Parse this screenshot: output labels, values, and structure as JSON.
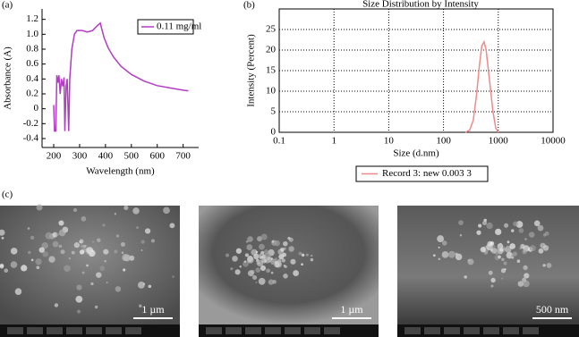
{
  "chart_data": [
    {
      "type": "line",
      "panel_label": "(a)",
      "x_label": "Wavelength (nm)",
      "y_label": "Absorbance (A)",
      "x": [
        200,
        203,
        208,
        212,
        216,
        220,
        225,
        230,
        235,
        240,
        243,
        248,
        252,
        258,
        262,
        270,
        280,
        290,
        310,
        330,
        350,
        370,
        380,
        385,
        395,
        410,
        430,
        460,
        500,
        550,
        600,
        650,
        700,
        720
      ],
      "series": [
        {
          "name": "0.11 mg/ml",
          "color": "#b23cc4",
          "values": [
            0.05,
            -0.3,
            -0.3,
            0.45,
            0.35,
            0.45,
            0.2,
            0.4,
            0.3,
            0.42,
            -0.3,
            0.3,
            0.4,
            -0.3,
            0.4,
            0.8,
            1.0,
            1.05,
            1.05,
            1.03,
            1.05,
            1.12,
            1.15,
            1.08,
            0.95,
            0.82,
            0.7,
            0.57,
            0.46,
            0.37,
            0.31,
            0.28,
            0.25,
            0.24
          ]
        }
      ],
      "xlim": [
        155,
        760
      ],
      "xticks": [
        200,
        300,
        400,
        500,
        600,
        700
      ],
      "ylim": [
        -0.52,
        1.34
      ],
      "yticks": [
        -0.4,
        -0.2,
        0,
        0.2,
        0.4,
        0.6,
        0.8,
        {
          "value": 1,
          "label": "1.0"
        },
        1.2
      ],
      "grid": false,
      "legend": "upper right"
    },
    {
      "type": "line",
      "panel_label": "(b)",
      "title": "Size Distribution by Intensity",
      "x_label": "Size (d.nm)",
      "y_label": "Intensity (Percent)",
      "x": [
        250,
        300,
        350,
        400,
        450,
        500,
        550,
        600,
        700,
        800,
        900,
        1000
      ],
      "series": [
        {
          "name": "Record 3: new 0.003 3",
          "color": "#f08a8a",
          "values": [
            0,
            0.5,
            3,
            9,
            16,
            21,
            22,
            20,
            12,
            5,
            1,
            0
          ]
        }
      ],
      "xscale": "log",
      "xlim": [
        0.1,
        10000
      ],
      "xticks": [
        0.1,
        1,
        10,
        100,
        1000,
        10000
      ],
      "ylim": [
        0,
        30
      ],
      "yticks": [
        0,
        5,
        10,
        15,
        20,
        25
      ],
      "grid": true,
      "legend": "below"
    }
  ],
  "figure": {
    "panel_label": "(c)",
    "images": [
      {
        "scale_label": "1 µm"
      },
      {
        "scale_label": "1 µm"
      },
      {
        "scale_label": "500 nm"
      }
    ]
  }
}
